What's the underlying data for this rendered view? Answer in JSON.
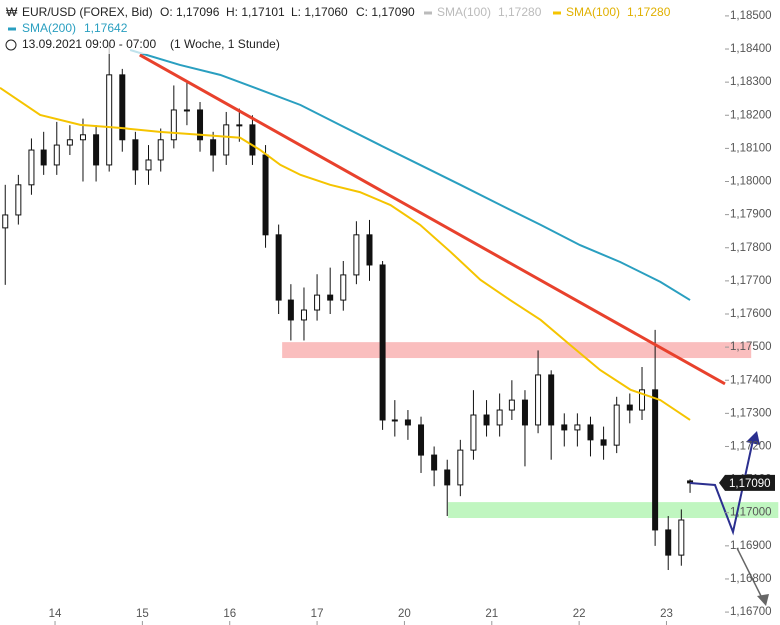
{
  "chart_data": {
    "type": "candlestick",
    "header": {
      "symbol": "EUR/USD (FOREX, Bid)",
      "open": "O: 1,17096",
      "high": "H: 1,17101",
      "low": "L: 1,17060",
      "close": "C: 1,17090",
      "range": "13.09.2021 09:00 - 07:00",
      "period": "(1 Woche, 1 Stunde)"
    },
    "legend_extra": {
      "name": "SMA(100)",
      "value": "1,17280",
      "color": "#bbbbbb"
    },
    "last_price_label": "1,17090",
    "x": [
      -0.57,
      -0.42,
      -0.27,
      -0.13,
      0.02,
      0.17,
      0.32,
      0.47,
      0.62,
      0.77,
      0.92,
      1.07,
      1.21,
      1.36,
      1.51,
      1.66,
      1.81,
      1.96,
      2.11,
      2.26,
      2.41,
      2.56,
      2.7,
      2.85,
      3.0,
      3.15,
      3.3,
      3.45,
      3.6,
      3.75,
      3.89,
      4.04,
      4.19,
      4.34,
      4.49,
      4.64,
      4.79,
      4.94,
      5.09,
      5.23,
      5.38,
      5.53,
      5.68,
      5.83,
      5.98,
      6.13,
      6.28,
      6.43,
      6.58,
      6.72,
      6.87,
      7.02,
      7.17,
      7.27
    ],
    "open": [
      1.1786,
      1.17899,
      1.1799,
      1.18095,
      1.1805,
      1.1811,
      1.18126,
      1.18141,
      1.1805,
      1.18322,
      1.18126,
      1.18035,
      1.18065,
      1.18126,
      1.18216,
      1.18216,
      1.18126,
      1.1808,
      1.18171,
      1.18171,
      1.1808,
      1.17839,
      1.17642,
      1.17582,
      1.17612,
      1.17657,
      1.17642,
      1.17718,
      1.17839,
      1.17748,
      1.1728,
      1.1728,
      1.17265,
      1.17174,
      1.17129,
      1.17084,
      1.17189,
      1.17295,
      1.17265,
      1.1731,
      1.1734,
      1.17265,
      1.17416,
      1.17265,
      1.1725,
      1.17265,
      1.1722,
      1.17204,
      1.17325,
      1.1731,
      1.17371,
      1.16948,
      1.16872,
      1.17096
    ],
    "high": [
      1.1799,
      1.1802,
      1.1813,
      1.1815,
      1.1818,
      1.1817,
      1.1819,
      1.1817,
      1.18412,
      1.1834,
      1.1815,
      1.1811,
      1.1816,
      1.1829,
      1.183,
      1.1824,
      1.1815,
      1.1821,
      1.1822,
      1.182,
      1.1811,
      1.1787,
      1.1769,
      1.1768,
      1.1772,
      1.1774,
      1.1776,
      1.1788,
      1.17884,
      1.1776,
      1.1734,
      1.1731,
      1.1729,
      1.172,
      1.1716,
      1.1722,
      1.1737,
      1.1734,
      1.1736,
      1.174,
      1.1737,
      1.1749,
      1.1743,
      1.173,
      1.173,
      1.1729,
      1.1726,
      1.1735,
      1.1736,
      1.1744,
      1.17552,
      1.1699,
      1.1701,
      1.17101
    ],
    "low": [
      1.17688,
      1.1787,
      1.1796,
      1.1802,
      1.1802,
      1.1808,
      1.18,
      1.18,
      1.1803,
      1.1809,
      1.1799,
      1.1799,
      1.1803,
      1.181,
      1.1817,
      1.1809,
      1.1803,
      1.1805,
      1.1812,
      1.1805,
      1.178,
      1.176,
      1.1752,
      1.1752,
      1.1758,
      1.176,
      1.1761,
      1.1769,
      1.177,
      1.1725,
      1.1723,
      1.1722,
      1.1712,
      1.1708,
      1.1699,
      1.1705,
      1.1716,
      1.1723,
      1.1723,
      1.1728,
      1.1714,
      1.1724,
      1.1716,
      1.172,
      1.172,
      1.1717,
      1.1716,
      1.1718,
      1.1727,
      1.1728,
      1.169,
      1.16827,
      1.1684,
      1.1706
    ],
    "close": [
      1.17899,
      1.1799,
      1.18095,
      1.1805,
      1.1811,
      1.18126,
      1.18141,
      1.1805,
      1.18322,
      1.18126,
      1.18035,
      1.18065,
      1.18126,
      1.18216,
      1.18216,
      1.18126,
      1.1808,
      1.18171,
      1.18171,
      1.1808,
      1.17839,
      1.17642,
      1.17582,
      1.17612,
      1.17657,
      1.17642,
      1.17718,
      1.17839,
      1.17748,
      1.1728,
      1.1728,
      1.17265,
      1.17174,
      1.17129,
      1.17084,
      1.17189,
      1.17295,
      1.17265,
      1.1731,
      1.1734,
      1.17265,
      1.17416,
      1.17265,
      1.1725,
      1.17265,
      1.1722,
      1.17204,
      1.17325,
      1.1731,
      1.17371,
      1.16948,
      1.16872,
      1.16978,
      1.1709
    ],
    "lines": [
      {
        "name": "SMA(100)",
        "value_label": "1,17280",
        "color": "#f5c400",
        "x": [
          -0.63,
          -0.17,
          0.29,
          0.74,
          1.2,
          1.66,
          2.12,
          2.35,
          2.58,
          2.81,
          3.15,
          3.49,
          3.84,
          4.18,
          4.53,
          4.87,
          5.21,
          5.56,
          5.9,
          6.24,
          6.59,
          6.93,
          7.27
        ],
        "values": [
          1.18283,
          1.18201,
          1.18171,
          1.18162,
          1.1815,
          1.18141,
          1.18132,
          1.18095,
          1.1805,
          1.1802,
          1.1799,
          1.17968,
          1.17929,
          1.17869,
          1.17787,
          1.17703,
          1.17642,
          1.17582,
          1.17506,
          1.17431,
          1.17371,
          1.1734,
          1.1728
        ]
      },
      {
        "name": "SMA(200)",
        "value_label": "1,17642",
        "color": "#2a9fc0",
        "x": [
          0.86,
          1.43,
          1.89,
          2.35,
          2.81,
          3.26,
          3.72,
          4.18,
          4.64,
          5.1,
          5.56,
          6.01,
          6.47,
          6.93,
          7.27
        ],
        "values": [
          1.18397,
          1.18352,
          1.18322,
          1.18277,
          1.18231,
          1.18171,
          1.1811,
          1.1805,
          1.1799,
          1.17929,
          1.17869,
          1.17808,
          1.17757,
          1.17697,
          1.17642
        ]
      }
    ],
    "trendline": {
      "color": "#e8412c",
      "x": [
        0.97,
        7.67
      ],
      "values": [
        1.18382,
        1.17389
      ]
    },
    "zones": [
      {
        "color": "#f9b3b3",
        "x": [
          2.6,
          7.97
        ],
        "values": [
          1.17515,
          1.17467
        ]
      },
      {
        "color": "#b5f5b5",
        "x": [
          4.5,
          8.28
        ],
        "values": [
          1.17032,
          1.16984
        ]
      }
    ],
    "xlim": [
      -0.63,
      7.67
    ],
    "ylim": [
      1.18548,
      1.16661
    ],
    "xticks": [
      {
        "value": 0,
        "label": "14"
      },
      {
        "value": 1,
        "label": "15"
      },
      {
        "value": 2,
        "label": "16"
      },
      {
        "value": 3,
        "label": "17"
      },
      {
        "value": 4,
        "label": "20"
      },
      {
        "value": 5,
        "label": "21"
      },
      {
        "value": 6,
        "label": "22"
      },
      {
        "value": 7,
        "label": "23"
      }
    ],
    "yticks": [
      {
        "value": 1.185,
        "label": "1,18500"
      },
      {
        "value": 1.184,
        "label": "1,18400"
      },
      {
        "value": 1.183,
        "label": "1,18300"
      },
      {
        "value": 1.182,
        "label": "1,18200"
      },
      {
        "value": 1.181,
        "label": "1,18100"
      },
      {
        "value": 1.18,
        "label": "1,18000"
      },
      {
        "value": 1.179,
        "label": "1,17900"
      },
      {
        "value": 1.178,
        "label": "1,17800"
      },
      {
        "value": 1.177,
        "label": "1,17700"
      },
      {
        "value": 1.176,
        "label": "1,17600"
      },
      {
        "value": 1.175,
        "label": "1,17500"
      },
      {
        "value": 1.174,
        "label": "1,17400"
      },
      {
        "value": 1.173,
        "label": "1,17300"
      },
      {
        "value": 1.172,
        "label": "1,17200"
      },
      {
        "value": 1.171,
        "label": "1,17100"
      },
      {
        "value": 1.17,
        "label": "1,17000"
      },
      {
        "value": 1.169,
        "label": "1,16900"
      },
      {
        "value": 1.168,
        "label": "1,16800"
      },
      {
        "value": 1.167,
        "label": "1,16700"
      }
    ]
  }
}
